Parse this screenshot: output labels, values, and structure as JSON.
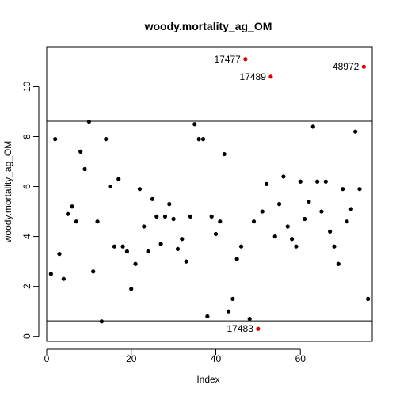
{
  "chart_data": {
    "type": "scatter",
    "title": "woody.mortality_ag_OM",
    "xlabel": "Index",
    "ylabel": "woody.mortality_ag_OM",
    "xlim": [
      0,
      77
    ],
    "ylim": [
      -0.2,
      11.6
    ],
    "x_ticks": [
      0,
      20,
      40,
      60
    ],
    "y_ticks": [
      0,
      2,
      4,
      6,
      8,
      10
    ],
    "reference_lines": [
      0.62,
      8.62
    ],
    "point_color": "#000000",
    "outlier_color": "#e00000",
    "points": [
      {
        "x": 1,
        "y": 2.5
      },
      {
        "x": 2,
        "y": 7.9
      },
      {
        "x": 3,
        "y": 3.3
      },
      {
        "x": 4,
        "y": 2.3
      },
      {
        "x": 5,
        "y": 4.9
      },
      {
        "x": 6,
        "y": 5.2
      },
      {
        "x": 7,
        "y": 4.6
      },
      {
        "x": 8,
        "y": 7.4
      },
      {
        "x": 9,
        "y": 6.7
      },
      {
        "x": 10,
        "y": 8.6
      },
      {
        "x": 11,
        "y": 2.6
      },
      {
        "x": 12,
        "y": 4.6
      },
      {
        "x": 13,
        "y": 0.6
      },
      {
        "x": 14,
        "y": 7.9
      },
      {
        "x": 15,
        "y": 6.0
      },
      {
        "x": 16,
        "y": 3.6
      },
      {
        "x": 17,
        "y": 6.3
      },
      {
        "x": 18,
        "y": 3.6
      },
      {
        "x": 19,
        "y": 3.4
      },
      {
        "x": 20,
        "y": 1.9
      },
      {
        "x": 21,
        "y": 2.9
      },
      {
        "x": 22,
        "y": 5.9
      },
      {
        "x": 23,
        "y": 4.4
      },
      {
        "x": 24,
        "y": 3.4
      },
      {
        "x": 25,
        "y": 5.5
      },
      {
        "x": 26,
        "y": 4.8
      },
      {
        "x": 27,
        "y": 3.7
      },
      {
        "x": 28,
        "y": 4.8
      },
      {
        "x": 29,
        "y": 5.3
      },
      {
        "x": 30,
        "y": 4.7
      },
      {
        "x": 31,
        "y": 3.5
      },
      {
        "x": 32,
        "y": 3.9
      },
      {
        "x": 33,
        "y": 3.0
      },
      {
        "x": 34,
        "y": 4.8
      },
      {
        "x": 35,
        "y": 8.5
      },
      {
        "x": 36,
        "y": 7.9
      },
      {
        "x": 37,
        "y": 7.9
      },
      {
        "x": 38,
        "y": 0.8
      },
      {
        "x": 39,
        "y": 4.8
      },
      {
        "x": 40,
        "y": 4.1
      },
      {
        "x": 41,
        "y": 4.6
      },
      {
        "x": 42,
        "y": 7.3
      },
      {
        "x": 43,
        "y": 1.0
      },
      {
        "x": 44,
        "y": 1.5
      },
      {
        "x": 45,
        "y": 3.1
      },
      {
        "x": 46,
        "y": 3.6
      },
      {
        "x": 47,
        "y": 11.1
      },
      {
        "x": 48,
        "y": 0.7
      },
      {
        "x": 49,
        "y": 4.6
      },
      {
        "x": 50,
        "y": 0.3
      },
      {
        "x": 51,
        "y": 5.0
      },
      {
        "x": 52,
        "y": 6.1
      },
      {
        "x": 53,
        "y": 10.4
      },
      {
        "x": 54,
        "y": 4.0
      },
      {
        "x": 55,
        "y": 5.3
      },
      {
        "x": 56,
        "y": 6.4
      },
      {
        "x": 57,
        "y": 4.4
      },
      {
        "x": 58,
        "y": 3.9
      },
      {
        "x": 59,
        "y": 3.6
      },
      {
        "x": 60,
        "y": 6.2
      },
      {
        "x": 61,
        "y": 4.7
      },
      {
        "x": 62,
        "y": 5.4
      },
      {
        "x": 63,
        "y": 8.4
      },
      {
        "x": 64,
        "y": 6.2
      },
      {
        "x": 65,
        "y": 5.0
      },
      {
        "x": 66,
        "y": 6.2
      },
      {
        "x": 67,
        "y": 4.2
      },
      {
        "x": 68,
        "y": 3.6
      },
      {
        "x": 69,
        "y": 2.9
      },
      {
        "x": 70,
        "y": 5.9
      },
      {
        "x": 71,
        "y": 4.6
      },
      {
        "x": 72,
        "y": 5.1
      },
      {
        "x": 73,
        "y": 8.2
      },
      {
        "x": 74,
        "y": 5.9
      },
      {
        "x": 75,
        "y": 10.8
      },
      {
        "x": 76,
        "y": 1.5
      }
    ],
    "outliers": [
      {
        "label": "17477",
        "x": 47,
        "y": 11.1
      },
      {
        "label": "17489",
        "x": 53,
        "y": 10.4
      },
      {
        "label": "48972",
        "x": 75,
        "y": 10.8
      },
      {
        "label": "17483",
        "x": 50,
        "y": 0.3
      }
    ]
  }
}
